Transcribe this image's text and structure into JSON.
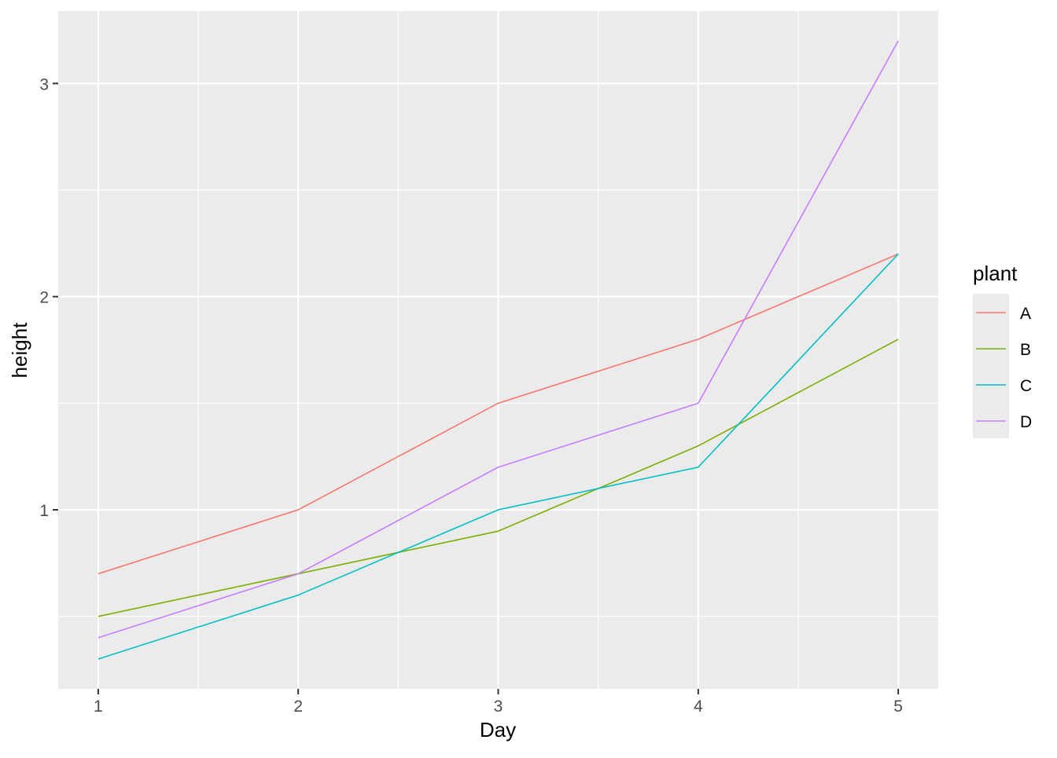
{
  "chart_data": {
    "type": "line",
    "title": "",
    "xlabel": "Day",
    "ylabel": "height",
    "x": [
      1,
      2,
      3,
      4,
      5
    ],
    "xlim": [
      0.8,
      5.2
    ],
    "ylim": [
      0.16,
      3.34
    ],
    "xticks": [
      1,
      2,
      3,
      4,
      5
    ],
    "yticks": [
      1,
      2,
      3
    ],
    "grid": true,
    "legend": {
      "title": "plant",
      "placement": "right"
    },
    "series": [
      {
        "name": "A",
        "color": "#F8766D",
        "values": [
          0.7,
          1.0,
          1.5,
          1.8,
          2.2
        ]
      },
      {
        "name": "B",
        "color": "#7CAE00",
        "values": [
          0.5,
          0.7,
          0.9,
          1.3,
          1.8
        ]
      },
      {
        "name": "C",
        "color": "#00BFC4",
        "values": [
          0.3,
          0.6,
          1.0,
          1.2,
          2.2
        ]
      },
      {
        "name": "D",
        "color": "#C77CFF",
        "values": [
          0.4,
          0.7,
          1.2,
          1.5,
          3.2
        ]
      }
    ]
  }
}
